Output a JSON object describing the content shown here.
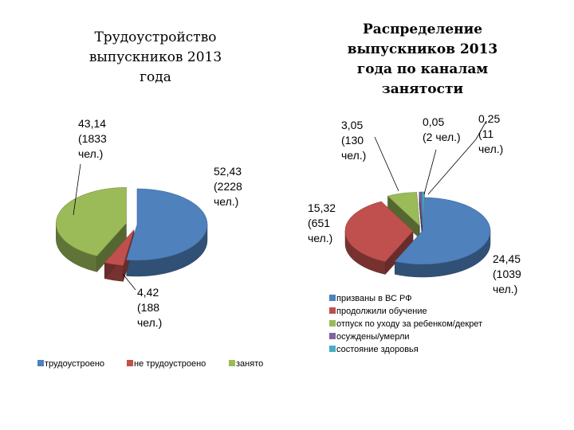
{
  "chart_data": [
    {
      "type": "pie",
      "title": "Трудоустройство\nвыпускников 2013\nгода",
      "categories": [
        "трудоустроено",
        "не трудоустроено",
        "занято"
      ],
      "values": [
        52.43,
        4.42,
        43.14
      ],
      "labels": [
        [
          "52,43",
          "(2228",
          "чел.)"
        ],
        [
          "4,42",
          "(188",
          "чел.)"
        ],
        [
          "43,14",
          "(1833",
          "чел.)"
        ]
      ],
      "colors": [
        "#4F81BD",
        "#C0504D",
        "#9BBB59"
      ],
      "legend_position": "bottom"
    },
    {
      "type": "pie",
      "title": "Распределение\nвыпускников 2013\nгода    по каналам\nзанятости",
      "categories": [
        "призваны в ВС РФ",
        "продолжили обучение",
        "отпуск по уходу за ребенком/декрет",
        "осуждены/умерли",
        "состояние здоровья"
      ],
      "values": [
        24.45,
        15.32,
        3.05,
        0.05,
        0.25
      ],
      "labels": [
        [
          "24,45",
          "(1039",
          "чел.)"
        ],
        [
          "15,32",
          "(651",
          "чел.)"
        ],
        [
          "3,05",
          "(130",
          "чел.)"
        ],
        [
          "0,05",
          "(2 чел.)"
        ],
        [
          "0,25",
          "(11",
          "чел.)"
        ]
      ],
      "colors": [
        "#4F81BD",
        "#C0504D",
        "#9BBB59",
        "#8064A2",
        "#4BACC6"
      ],
      "legend_position": "bottom-right"
    }
  ]
}
